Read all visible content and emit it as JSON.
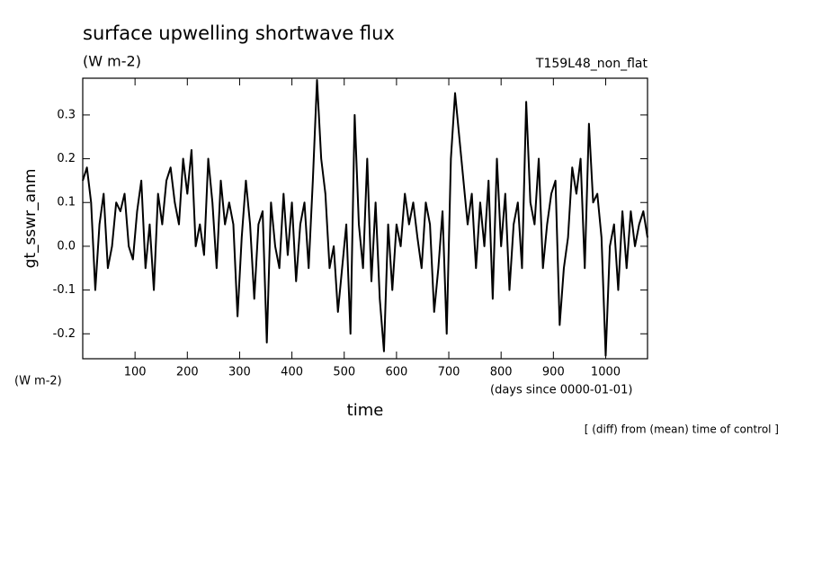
{
  "chart_data": {
    "type": "line",
    "title": "surface upwelling shortwave flux",
    "subtitle": "(W m-2)",
    "annotation": "T159L48_non_flat",
    "y_label": "gt_sswr_anm",
    "y_units": "(W m-2)",
    "x_label": "time",
    "x_units": "(days since 0000-01-01)",
    "note": "[ (diff) from (mean) time of control ]",
    "color": "#000000",
    "x": [
      0,
      8,
      16,
      24,
      32,
      40,
      48,
      56,
      64,
      72,
      80,
      88,
      96,
      104,
      112,
      120,
      128,
      136,
      144,
      152,
      160,
      168,
      176,
      184,
      192,
      200,
      208,
      216,
      224,
      232,
      240,
      248,
      256,
      264,
      272,
      280,
      288,
      296,
      304,
      312,
      320,
      328,
      336,
      344,
      352,
      360,
      368,
      376,
      384,
      392,
      400,
      408,
      416,
      424,
      432,
      440,
      448,
      456,
      464,
      472,
      480,
      488,
      496,
      504,
      512,
      520,
      528,
      536,
      544,
      552,
      560,
      568,
      576,
      584,
      592,
      600,
      608,
      616,
      624,
      632,
      640,
      648,
      656,
      664,
      672,
      680,
      688,
      696,
      704,
      712,
      720,
      728,
      736,
      744,
      752,
      760,
      768,
      776,
      784,
      792,
      800,
      808,
      816,
      824,
      832,
      840,
      848,
      856,
      864,
      872,
      880,
      888,
      896,
      904,
      912,
      920,
      928,
      936,
      944,
      952,
      960,
      968,
      976,
      984,
      992,
      1000,
      1008,
      1016,
      1024,
      1032,
      1040,
      1048,
      1056,
      1064,
      1072,
      1080
    ],
    "values": [
      0.15,
      0.18,
      0.1,
      -0.1,
      0.05,
      0.12,
      -0.05,
      0.0,
      0.1,
      0.08,
      0.12,
      0.0,
      -0.03,
      0.08,
      0.15,
      -0.05,
      0.05,
      -0.1,
      0.12,
      0.05,
      0.15,
      0.18,
      0.1,
      0.05,
      0.2,
      0.12,
      0.22,
      0.0,
      0.05,
      -0.02,
      0.2,
      0.1,
      -0.05,
      0.15,
      0.05,
      0.1,
      0.05,
      -0.16,
      0.02,
      0.15,
      0.05,
      -0.12,
      0.05,
      0.08,
      -0.22,
      0.1,
      0.0,
      -0.05,
      0.12,
      -0.02,
      0.1,
      -0.08,
      0.05,
      0.1,
      -0.05,
      0.15,
      0.38,
      0.2,
      0.12,
      -0.05,
      0.0,
      -0.15,
      -0.05,
      0.05,
      -0.2,
      0.3,
      0.05,
      -0.05,
      0.2,
      -0.08,
      0.1,
      -0.12,
      -0.24,
      0.05,
      -0.1,
      0.05,
      0.0,
      0.12,
      0.05,
      0.1,
      0.02,
      -0.05,
      0.1,
      0.05,
      -0.15,
      -0.05,
      0.08,
      -0.2,
      0.2,
      0.35,
      0.25,
      0.15,
      0.05,
      0.12,
      -0.05,
      0.1,
      0.0,
      0.15,
      -0.12,
      0.2,
      0.0,
      0.12,
      -0.1,
      0.05,
      0.1,
      -0.05,
      0.33,
      0.1,
      0.05,
      0.2,
      -0.05,
      0.05,
      0.12,
      0.15,
      -0.18,
      -0.05,
      0.02,
      0.18,
      0.12,
      0.2,
      -0.05,
      0.28,
      0.1,
      0.12,
      0.02,
      -0.25,
      0.0,
      0.05,
      -0.1,
      0.08,
      -0.05,
      0.08,
      0.0,
      0.05,
      0.08,
      0.02
    ],
    "xlim": [
      0,
      1080
    ],
    "ylim": [
      -0.257,
      0.384
    ],
    "xticks": [
      100,
      200,
      300,
      400,
      500,
      600,
      700,
      800,
      900,
      1000
    ],
    "yticks": [
      -0.2,
      -0.1,
      {
        "value": 0,
        "label": "0.0"
      },
      0.1,
      0.2,
      0.3
    ]
  }
}
